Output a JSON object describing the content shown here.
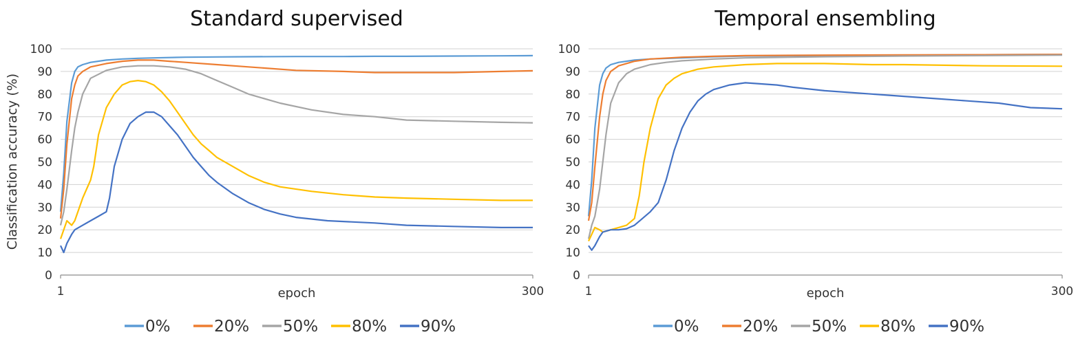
{
  "figure": {
    "ylabel": "Classification accuracy (%)"
  },
  "chart_data": [
    {
      "type": "line",
      "title": "Standard supervised",
      "xlabel": "epoch",
      "ylabel": "Classification accuracy (%)",
      "xlim": [
        1,
        300
      ],
      "ylim": [
        0,
        100
      ],
      "x_ticks": [
        1,
        300
      ],
      "y_ticks": [
        0,
        10,
        20,
        30,
        40,
        50,
        60,
        70,
        80,
        90,
        100
      ],
      "grid": true,
      "legend": "bottom-center",
      "series": [
        {
          "name": "0%",
          "color": "#5B9BD5",
          "x": [
            1,
            3,
            5,
            8,
            10,
            12,
            15,
            20,
            30,
            40,
            50,
            60,
            80,
            100,
            120,
            150,
            180,
            200,
            220,
            250,
            280,
            300
          ],
          "y": [
            28,
            45,
            68,
            85,
            90,
            92,
            93,
            94,
            95,
            95.5,
            95.8,
            96,
            96.3,
            96.4,
            96.5,
            96.6,
            96.6,
            96.7,
            96.7,
            96.8,
            96.9,
            97
          ]
        },
        {
          "name": "20%",
          "color": "#ED7D31",
          "x": [
            1,
            3,
            5,
            8,
            10,
            12,
            15,
            20,
            30,
            40,
            50,
            60,
            70,
            80,
            100,
            120,
            150,
            180,
            200,
            220,
            250,
            280,
            300
          ],
          "y": [
            25,
            38,
            58,
            78,
            84,
            88,
            90,
            92,
            93.5,
            94.5,
            95,
            95,
            94.5,
            94,
            93,
            92,
            90.5,
            90,
            89.5,
            89.5,
            89.5,
            90,
            90.3
          ]
        },
        {
          "name": "50%",
          "color": "#A5A5A5",
          "x": [
            1,
            3,
            5,
            8,
            10,
            12,
            15,
            20,
            30,
            40,
            50,
            60,
            70,
            80,
            90,
            100,
            110,
            120,
            140,
            160,
            180,
            200,
            220,
            250,
            280,
            300
          ],
          "y": [
            22,
            28,
            38,
            55,
            65,
            72,
            80,
            87,
            90.5,
            92,
            92.5,
            92.5,
            92,
            91,
            89,
            86,
            83,
            80,
            76,
            73,
            71,
            70,
            68.5,
            68,
            67.5,
            67.3
          ]
        },
        {
          "name": "80%",
          "color": "#FFC000",
          "x": [
            1,
            3,
            5,
            8,
            10,
            12,
            15,
            20,
            22,
            25,
            30,
            35,
            40,
            45,
            50,
            55,
            60,
            65,
            70,
            75,
            80,
            85,
            90,
            95,
            100,
            110,
            120,
            130,
            140,
            160,
            180,
            200,
            220,
            250,
            280,
            300
          ],
          "y": [
            16,
            20,
            24,
            22,
            24,
            28,
            34,
            42,
            48,
            62,
            74,
            80,
            84,
            85.5,
            86,
            85.5,
            84,
            81,
            77,
            72,
            67,
            62,
            58,
            55,
            52,
            48,
            44,
            41,
            39,
            37,
            35.5,
            34.5,
            34,
            33.5,
            33,
            33
          ]
        },
        {
          "name": "90%",
          "color": "#4472C4",
          "x": [
            1,
            3,
            5,
            8,
            10,
            15,
            20,
            25,
            30,
            32,
            35,
            40,
            45,
            50,
            55,
            60,
            65,
            70,
            75,
            80,
            85,
            90,
            95,
            100,
            110,
            120,
            130,
            140,
            150,
            170,
            200,
            220,
            250,
            280,
            300
          ],
          "y": [
            13,
            10,
            14,
            18,
            20,
            22,
            24,
            26,
            28,
            34,
            48,
            60,
            67,
            70,
            72,
            72,
            70,
            66,
            62,
            57,
            52,
            48,
            44,
            41,
            36,
            32,
            29,
            27,
            25.5,
            24,
            23,
            22,
            21.5,
            21,
            21
          ]
        }
      ]
    },
    {
      "type": "line",
      "title": "Temporal ensembling",
      "xlabel": "epoch",
      "ylabel": "",
      "xlim": [
        1,
        300
      ],
      "ylim": [
        0,
        100
      ],
      "x_ticks": [
        1,
        300
      ],
      "y_ticks": [
        0,
        10,
        20,
        30,
        40,
        50,
        60,
        70,
        80,
        90,
        100
      ],
      "grid": true,
      "legend": "bottom-center",
      "series": [
        {
          "name": "0%",
          "color": "#5B9BD5",
          "x": [
            1,
            3,
            5,
            8,
            10,
            12,
            15,
            20,
            30,
            40,
            60,
            80,
            100,
            150,
            200,
            250,
            300
          ],
          "y": [
            26,
            42,
            65,
            84,
            89,
            91.5,
            93,
            94,
            95,
            95.5,
            96,
            96.5,
            96.8,
            97,
            97.2,
            97.4,
            97.5
          ]
        },
        {
          "name": "20%",
          "color": "#ED7D31",
          "x": [
            1,
            3,
            5,
            8,
            10,
            12,
            15,
            20,
            30,
            40,
            60,
            80,
            100,
            150,
            200,
            250,
            300
          ],
          "y": [
            24,
            32,
            48,
            70,
            80,
            86,
            90,
            92.5,
            94.5,
            95.5,
            96.3,
            96.7,
            97,
            97.2,
            97.3,
            97.4,
            97.5
          ]
        },
        {
          "name": "50%",
          "color": "#A5A5A5",
          "x": [
            1,
            3,
            5,
            8,
            10,
            12,
            15,
            20,
            25,
            30,
            40,
            50,
            60,
            80,
            100,
            150,
            200,
            250,
            300
          ],
          "y": [
            16,
            22,
            26,
            38,
            50,
            62,
            76,
            85,
            89,
            91,
            93,
            94,
            94.7,
            95.5,
            96,
            96.5,
            96.8,
            97,
            97.2
          ]
        },
        {
          "name": "80%",
          "color": "#FFC000",
          "x": [
            1,
            3,
            5,
            8,
            10,
            15,
            20,
            25,
            30,
            33,
            36,
            40,
            45,
            50,
            55,
            60,
            70,
            80,
            100,
            120,
            150,
            180,
            200,
            250,
            300
          ],
          "y": [
            15,
            18,
            21,
            20,
            19,
            20,
            21,
            22,
            25,
            35,
            50,
            65,
            78,
            84,
            87,
            89,
            91,
            92,
            93,
            93.5,
            93.5,
            93,
            93,
            92.5,
            92.3
          ]
        },
        {
          "name": "90%",
          "color": "#4472C4",
          "x": [
            1,
            3,
            5,
            8,
            10,
            15,
            20,
            25,
            30,
            35,
            40,
            45,
            50,
            55,
            60,
            65,
            70,
            75,
            80,
            90,
            100,
            110,
            120,
            130,
            150,
            180,
            200,
            220,
            240,
            260,
            280,
            300
          ],
          "y": [
            13,
            11,
            13,
            17,
            19,
            20,
            20,
            20.5,
            22,
            25,
            28,
            32,
            42,
            55,
            65,
            72,
            77,
            80,
            82,
            84,
            85,
            84.5,
            84,
            83,
            81.5,
            80,
            79,
            78,
            77,
            76,
            74,
            73.5
          ]
        }
      ]
    }
  ]
}
